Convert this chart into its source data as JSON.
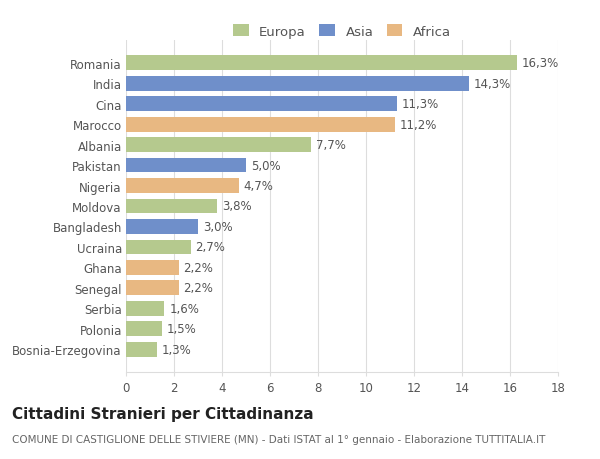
{
  "categories": [
    "Bosnia-Erzegovina",
    "Polonia",
    "Serbia",
    "Senegal",
    "Ghana",
    "Ucraina",
    "Bangladesh",
    "Moldova",
    "Nigeria",
    "Pakistan",
    "Albania",
    "Marocco",
    "Cina",
    "India",
    "Romania"
  ],
  "values": [
    1.3,
    1.5,
    1.6,
    2.2,
    2.2,
    2.7,
    3.0,
    3.8,
    4.7,
    5.0,
    7.7,
    11.2,
    11.3,
    14.3,
    16.3
  ],
  "labels": [
    "1,3%",
    "1,5%",
    "1,6%",
    "2,2%",
    "2,2%",
    "2,7%",
    "3,0%",
    "3,8%",
    "4,7%",
    "5,0%",
    "7,7%",
    "11,2%",
    "11,3%",
    "14,3%",
    "16,3%"
  ],
  "continents": [
    "Europa",
    "Europa",
    "Europa",
    "Africa",
    "Africa",
    "Europa",
    "Asia",
    "Europa",
    "Africa",
    "Asia",
    "Europa",
    "Africa",
    "Asia",
    "Asia",
    "Europa"
  ],
  "colors": {
    "Europa": "#b5c98e",
    "Asia": "#6f8fca",
    "Africa": "#e8b882"
  },
  "legend_colors": {
    "Europa": "#b5c98e",
    "Asia": "#6f8fca",
    "Africa": "#e8b882"
  },
  "xlim": [
    0,
    18
  ],
  "xticks": [
    0,
    2,
    4,
    6,
    8,
    10,
    12,
    14,
    16,
    18
  ],
  "title": "Cittadini Stranieri per Cittadinanza",
  "subtitle": "COMUNE DI CASTIGLIONE DELLE STIVIERE (MN) - Dati ISTAT al 1° gennaio - Elaborazione TUTTITALIA.IT",
  "background_color": "#ffffff",
  "grid_color": "#dddddd",
  "bar_height": 0.72,
  "label_fontsize": 8.5,
  "ytick_fontsize": 8.5,
  "xtick_fontsize": 8.5,
  "title_fontsize": 11,
  "subtitle_fontsize": 7.5
}
